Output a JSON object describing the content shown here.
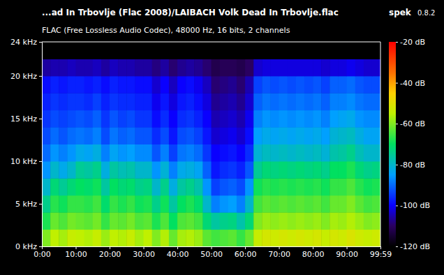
{
  "chart_data": {
    "type": "heatmap",
    "title": "...ad In Trbovlje (Flac 2008)/LAIBACH Volk Dead In Trbovlje.flac",
    "subtitle": "FLAC (Free Lossless Audio Codec), 48000 Hz, 16 bits, 2 channels",
    "annotations": [
      "spek",
      "0.8.2"
    ],
    "xlim": [
      0,
      99.983
    ],
    "xticks": [
      {
        "value": 0,
        "label": "0:00"
      },
      {
        "value": 10,
        "label": "10:00"
      },
      {
        "value": 20,
        "label": "20:00"
      },
      {
        "value": 30,
        "label": "30:00"
      },
      {
        "value": 40,
        "label": "40:00"
      },
      {
        "value": 50,
        "label": "50:00"
      },
      {
        "value": 60,
        "label": "60:00"
      },
      {
        "value": 70,
        "label": "70:00"
      },
      {
        "value": 80,
        "label": "80:00"
      },
      {
        "value": 90,
        "label": "90:00"
      },
      {
        "value": 99.983,
        "label": "99:59"
      }
    ],
    "ylim": [
      0,
      24
    ],
    "yticks": [
      {
        "value": 0,
        "label": "0 kHz"
      },
      {
        "value": 5,
        "label": "5 kHz"
      },
      {
        "value": 10,
        "label": "10 kHz"
      },
      {
        "value": 15,
        "label": "15 kHz"
      },
      {
        "value": 20,
        "label": "20 kHz"
      },
      {
        "value": 24,
        "label": "24 kHz"
      }
    ],
    "colorbar": {
      "range": [
        -120,
        -20
      ],
      "ticks": [
        {
          "value": -20,
          "label": "-20 dB"
        },
        {
          "value": -40,
          "label": "-40 dB"
        },
        {
          "value": -60,
          "label": "-60 dB"
        },
        {
          "value": -80,
          "label": "-80 dB"
        },
        {
          "value": -100,
          "label": "-100 dB"
        },
        {
          "value": -120,
          "label": "-120 dB"
        }
      ]
    },
    "x_edges": [
      0,
      2.5,
      5,
      7.5,
      10,
      12.5,
      15,
      17.5,
      20,
      22.5,
      25,
      27.5,
      30,
      32.5,
      35,
      37.5,
      40,
      42.5,
      45,
      47.5,
      50,
      52.5,
      55,
      57.5,
      60,
      62.5,
      65,
      67.5,
      70,
      72.5,
      75,
      77.5,
      80,
      82.5,
      85,
      87.5,
      90,
      92.5,
      95,
      97.5,
      99.983
    ],
    "y_edges": [
      0,
      2,
      4,
      6,
      8,
      10,
      12,
      14,
      16,
      18,
      20,
      22,
      24
    ],
    "values": [
      [
        -60,
        -55,
        -57,
        -54,
        -55,
        -56,
        -54,
        -58,
        -55,
        -56,
        -54,
        -57,
        -55,
        -60,
        -56,
        -62,
        -57,
        -56,
        -58,
        -63,
        -65,
        -64,
        -63,
        -66,
        -62,
        -54,
        -52,
        -53,
        -52,
        -53,
        -52,
        -53,
        -52,
        -54,
        -52,
        -53,
        -51,
        -53,
        -54,
        -53
      ],
      [
        -68,
        -62,
        -64,
        -61,
        -62,
        -63,
        -61,
        -66,
        -62,
        -63,
        -61,
        -64,
        -63,
        -68,
        -64,
        -70,
        -64,
        -63,
        -65,
        -72,
        -76,
        -74,
        -73,
        -77,
        -72,
        -60,
        -58,
        -59,
        -58,
        -59,
        -58,
        -59,
        -58,
        -60,
        -57,
        -58,
        -56,
        -58,
        -60,
        -59
      ],
      [
        -74,
        -67,
        -69,
        -66,
        -66,
        -67,
        -65,
        -71,
        -66,
        -68,
        -66,
        -69,
        -68,
        -74,
        -69,
        -76,
        -70,
        -68,
        -71,
        -80,
        -88,
        -86,
        -85,
        -88,
        -80,
        -65,
        -63,
        -64,
        -63,
        -64,
        -63,
        -64,
        -63,
        -65,
        -62,
        -62,
        -60,
        -63,
        -65,
        -64
      ],
      [
        -80,
        -72,
        -75,
        -72,
        -70,
        -71,
        -69,
        -76,
        -70,
        -72,
        -71,
        -74,
        -73,
        -80,
        -74,
        -82,
        -76,
        -74,
        -77,
        -86,
        -94,
        -92,
        -91,
        -93,
        -86,
        -69,
        -67,
        -68,
        -67,
        -68,
        -67,
        -68,
        -67,
        -69,
        -66,
        -66,
        -64,
        -67,
        -69,
        -68
      ],
      [
        -86,
        -80,
        -83,
        -80,
        -75,
        -76,
        -74,
        -82,
        -76,
        -78,
        -77,
        -80,
        -80,
        -86,
        -81,
        -88,
        -83,
        -82,
        -84,
        -91,
        -98,
        -96,
        -95,
        -97,
        -92,
        -75,
        -72,
        -73,
        -72,
        -73,
        -72,
        -73,
        -72,
        -74,
        -70,
        -70,
        -68,
        -72,
        -74,
        -73
      ],
      [
        -90,
        -86,
        -88,
        -86,
        -83,
        -84,
        -82,
        -88,
        -84,
        -86,
        -85,
        -87,
        -87,
        -92,
        -88,
        -94,
        -89,
        -88,
        -90,
        -95,
        -100,
        -99,
        -98,
        -100,
        -96,
        -81,
        -79,
        -80,
        -79,
        -80,
        -79,
        -80,
        -79,
        -81,
        -77,
        -76,
        -74,
        -78,
        -80,
        -80
      ],
      [
        -93,
        -90,
        -92,
        -90,
        -89,
        -90,
        -88,
        -93,
        -89,
        -91,
        -90,
        -92,
        -92,
        -96,
        -93,
        -98,
        -93,
        -92,
        -94,
        -98,
        -103,
        -102,
        -101,
        -103,
        -99,
        -85,
        -83,
        -84,
        -83,
        -84,
        -83,
        -84,
        -83,
        -85,
        -81,
        -80,
        -79,
        -82,
        -84,
        -84
      ],
      [
        -95,
        -93,
        -94,
        -93,
        -92,
        -93,
        -91,
        -95,
        -92,
        -94,
        -93,
        -95,
        -95,
        -99,
        -96,
        -100,
        -96,
        -95,
        -97,
        -100,
        -105,
        -104,
        -103,
        -105,
        -101,
        -88,
        -86,
        -87,
        -86,
        -87,
        -86,
        -87,
        -86,
        -88,
        -85,
        -84,
        -83,
        -86,
        -87,
        -87
      ],
      [
        -97,
        -95,
        -96,
        -95,
        -95,
        -96,
        -94,
        -97,
        -95,
        -96,
        -96,
        -97,
        -97,
        -101,
        -98,
        -102,
        -98,
        -97,
        -99,
        -102,
        -107,
        -106,
        -105,
        -107,
        -103,
        -91,
        -89,
        -90,
        -89,
        -90,
        -89,
        -90,
        -89,
        -91,
        -88,
        -88,
        -87,
        -89,
        -90,
        -90
      ],
      [
        -99,
        -97,
        -98,
        -97,
        -97,
        -98,
        -97,
        -99,
        -97,
        -98,
        -98,
        -99,
        -99,
        -103,
        -100,
        -104,
        -100,
        -99,
        -101,
        -104,
        -109,
        -108,
        -107,
        -109,
        -105,
        -94,
        -92,
        -93,
        -92,
        -93,
        -92,
        -93,
        -92,
        -94,
        -91,
        -91,
        -90,
        -92,
        -93,
        -93
      ],
      [
        -106,
        -105,
        -105,
        -104,
        -105,
        -105,
        -104,
        -106,
        -104,
        -105,
        -105,
        -106,
        -106,
        -108,
        -106,
        -109,
        -107,
        -106,
        -107,
        -109,
        -112,
        -111,
        -111,
        -112,
        -110,
        -103,
        -102,
        -102,
        -102,
        -102,
        -102,
        -102,
        -102,
        -103,
        -102,
        -102,
        -101,
        -102,
        -103,
        -103
      ],
      [
        -120,
        -120,
        -120,
        -120,
        -120,
        -120,
        -120,
        -120,
        -120,
        -120,
        -120,
        -120,
        -120,
        -120,
        -120,
        -120,
        -120,
        -120,
        -120,
        -120,
        -120,
        -120,
        -120,
        -120,
        -120,
        -120,
        -120,
        -120,
        -120,
        -120,
        -120,
        -120,
        -120,
        -120,
        -120,
        -120,
        -120,
        -120,
        -120,
        -120
      ]
    ]
  }
}
